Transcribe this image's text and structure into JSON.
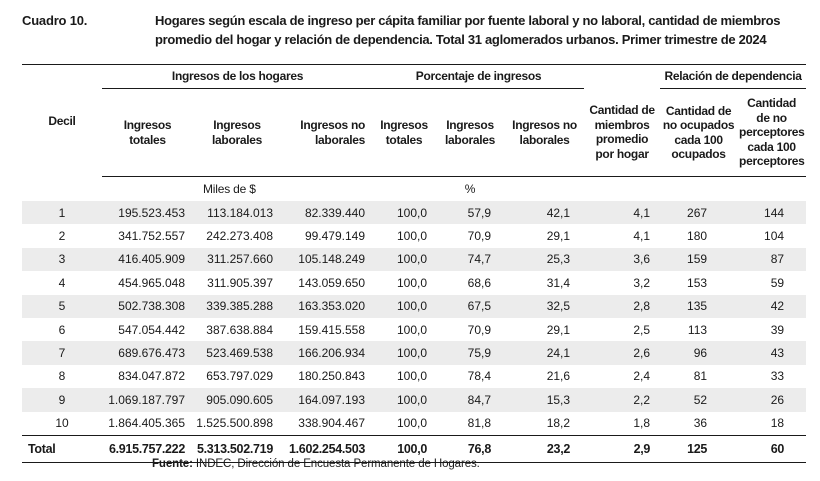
{
  "cuadro": "Cuadro 10.",
  "title": "Hogares según escala de ingreso per cápita familiar por fuente laboral y no laboral, cantidad de miembros promedio del hogar y relación de dependencia. Total 31 aglomerados urbanos. Primer trimestre de 2024",
  "headers": {
    "decil": "Decil",
    "group_ingresos": "Ingresos de los hogares",
    "group_porcentaje": "Porcentaje de ingresos",
    "group_relacion": "Relación de dependencia",
    "ing_totales": "Ingresos totales",
    "ing_laborales": "Ingresos laborales",
    "ing_no_laborales": "Ingresos no laborales",
    "pct_totales": "Ingresos totales",
    "pct_laborales": "Ingresos laborales",
    "pct_no_laborales": "Ingresos no laborales",
    "miembros": "Cantidad de miembros promedio por hogar",
    "no_ocupados": "Cantidad de no ocupados cada 100 ocupados",
    "no_perceptores": "Cantidad de no perceptores cada 100 perceptores"
  },
  "units": {
    "miles": "Miles de $",
    "pct": "%"
  },
  "rows": [
    [
      "1",
      "195.523.453",
      "113.184.013",
      "82.339.440",
      "100,0",
      "57,9",
      "42,1",
      "4,1",
      "267",
      "144"
    ],
    [
      "2",
      "341.752.557",
      "242.273.408",
      "99.479.149",
      "100,0",
      "70,9",
      "29,1",
      "4,1",
      "180",
      "104"
    ],
    [
      "3",
      "416.405.909",
      "311.257.660",
      "105.148.249",
      "100,0",
      "74,7",
      "25,3",
      "3,6",
      "159",
      "87"
    ],
    [
      "4",
      "454.965.048",
      "311.905.397",
      "143.059.650",
      "100,0",
      "68,6",
      "31,4",
      "3,2",
      "153",
      "59"
    ],
    [
      "5",
      "502.738.308",
      "339.385.288",
      "163.353.020",
      "100,0",
      "67,5",
      "32,5",
      "2,8",
      "135",
      "42"
    ],
    [
      "6",
      "547.054.442",
      "387.638.884",
      "159.415.558",
      "100,0",
      "70,9",
      "29,1",
      "2,5",
      "113",
      "39"
    ],
    [
      "7",
      "689.676.473",
      "523.469.538",
      "166.206.934",
      "100,0",
      "75,9",
      "24,1",
      "2,6",
      "96",
      "43"
    ],
    [
      "8",
      "834.047.872",
      "653.797.029",
      "180.250.843",
      "100,0",
      "78,4",
      "21,6",
      "2,4",
      "81",
      "33"
    ],
    [
      "9",
      "1.069.187.797",
      "905.090.605",
      "164.097.193",
      "100,0",
      "84,7",
      "15,3",
      "2,2",
      "52",
      "26"
    ],
    [
      "10",
      "1.864.405.365",
      "1.525.500.898",
      "338.904.467",
      "100,0",
      "81,8",
      "18,2",
      "1,8",
      "36",
      "18"
    ]
  ],
  "total": [
    "Total",
    "6.915.757.222",
    "5.313.502.719",
    "1.602.254.503",
    "100,0",
    "76,8",
    "23,2",
    "2,9",
    "125",
    "60"
  ],
  "source_label": "Fuente:",
  "source_text": " INDEC, Dirección de Encuesta Permanente de Hogares."
}
